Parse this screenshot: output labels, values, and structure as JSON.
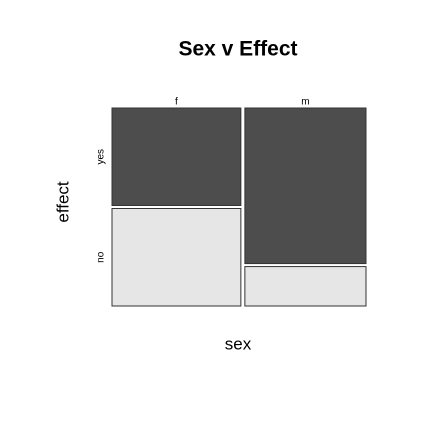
{
  "chart_data": {
    "type": "mosaic",
    "title": "Sex v Effect",
    "x_label": "sex",
    "y_label": "effect",
    "categories": [
      "f",
      "m"
    ],
    "series": [
      {
        "name": "yes",
        "color": "#4d4d4d",
        "values": [
          50,
          75
        ]
      },
      {
        "name": "no",
        "color": "#e6e6e6",
        "values": [
          50,
          19
        ]
      }
    ]
  }
}
